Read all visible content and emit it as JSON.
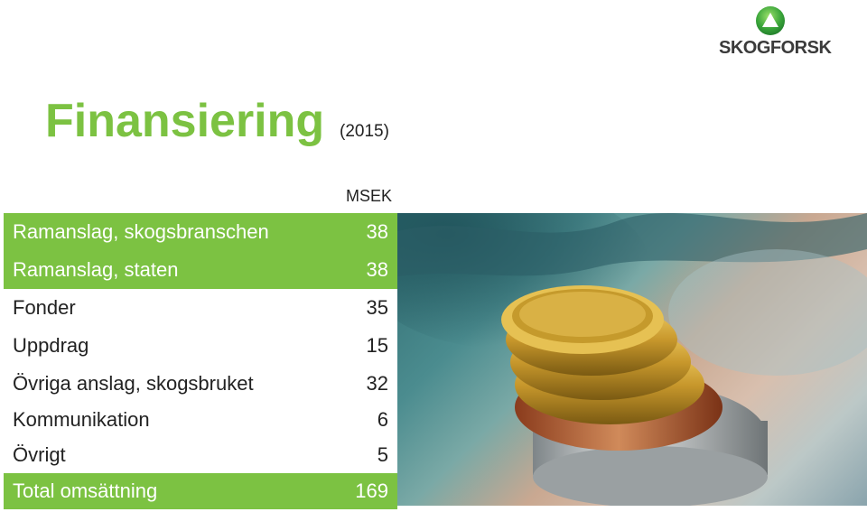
{
  "logo": {
    "text": "SKOGFORSK"
  },
  "header": {
    "title": "Finansiering",
    "year": "(2015)"
  },
  "table": {
    "unit": "MSEK",
    "rows": [
      {
        "label": "Ramanslag, skogsbranschen",
        "value": "38"
      },
      {
        "label": "Ramanslag, staten",
        "value": "38"
      },
      {
        "label": "Fonder",
        "value": "35"
      },
      {
        "label": "Uppdrag",
        "value": "15"
      },
      {
        "label": "Övriga anslag, skogsbruket",
        "value": "32"
      },
      {
        "label": "Kommunikation",
        "value": "6"
      },
      {
        "label": "Övrigt",
        "value": "5"
      },
      {
        "label": "Total omsättning",
        "value": "169"
      }
    ]
  },
  "colors": {
    "brand_green": "#7cc242",
    "text_dark": "#222222"
  },
  "photo": {
    "subject": "coins-on-banknote-image"
  }
}
